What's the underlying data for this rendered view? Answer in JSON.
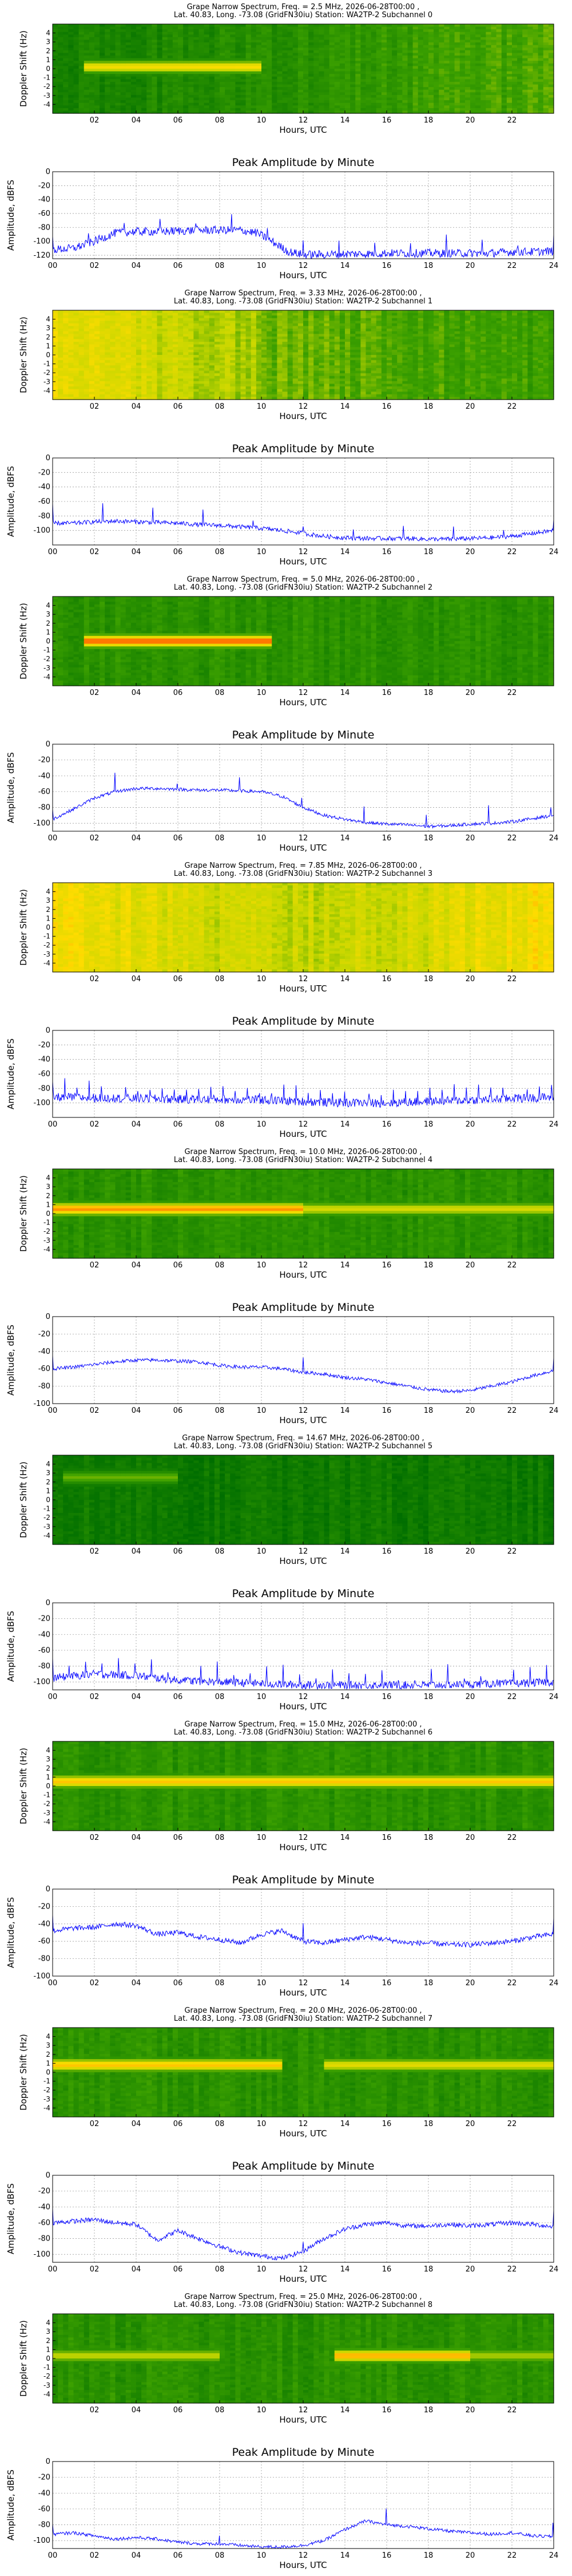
{
  "chart_data": [
    {
      "type": "heatmap",
      "title": "Grape Narrow Spectrum, Freq. = 2.5 MHz, 2026-06-28T00:00 ,",
      "subtitle": "Lat.  40.83, Long. -73.08 (GridFN30iu) Station: WA2TP-2 Subchannel 0",
      "xlabel": "Hours, UTC",
      "ylabel": "Doppler Shift (Hz)",
      "xlim": [
        0,
        24
      ],
      "ylim": [
        -5,
        5
      ],
      "xticks": [
        "02",
        "04",
        "06",
        "08",
        "10",
        "12",
        "14",
        "16",
        "18",
        "20",
        "22"
      ],
      "yticks": [
        "-4",
        "-3",
        "-2",
        "-1",
        "0",
        "1",
        "2",
        "3",
        "4"
      ],
      "bands": [
        {
          "y": 0.2,
          "x": [
            1.5,
            10
          ],
          "strength": 0.7
        }
      ],
      "base": "dark-green-left-light-right"
    },
    {
      "type": "line",
      "title": "Peak Amplitude by Minute",
      "xlabel": "Hours, UTC",
      "ylabel": "Amplitude, dBFS",
      "xlim": [
        0,
        24
      ],
      "ylim": [
        -125,
        0
      ],
      "yticks": [
        0,
        -20,
        -40,
        -60,
        -80,
        -100,
        -120
      ],
      "xticks": [
        "00",
        "02",
        "04",
        "06",
        "08",
        "10",
        "12",
        "14",
        "16",
        "18",
        "20",
        "22",
        "24"
      ],
      "x": [
        0,
        1,
        2,
        3,
        4,
        5,
        6,
        7,
        8,
        9,
        9.8,
        10.5,
        11.3,
        12,
        13,
        14,
        15,
        16,
        17,
        18,
        19,
        20,
        21,
        22,
        23,
        24
      ],
      "y": [
        -112,
        -110,
        -100,
        -88,
        -86,
        -86,
        -85,
        -84,
        -84,
        -84,
        -88,
        -100,
        -115,
        -119,
        -119,
        -118,
        -118,
        -117,
        -117,
        -117,
        -117,
        -117,
        -117,
        -115,
        -115,
        -114
      ],
      "noise": 6,
      "spikes": 14
    },
    {
      "type": "heatmap",
      "title": "Grape Narrow Spectrum, Freq. = 3.33 MHz, 2026-06-28T00:00 ,",
      "subtitle": "Lat.  40.83, Long. -73.08 (GridFN30iu) Station: WA2TP-2 Subchannel 1",
      "xlabel": "Hours, UTC",
      "ylabel": "Doppler Shift (Hz)",
      "xlim": [
        0,
        24
      ],
      "ylim": [
        -5,
        5
      ],
      "xticks": [
        "02",
        "04",
        "06",
        "08",
        "10",
        "12",
        "14",
        "16",
        "18",
        "20",
        "22"
      ],
      "yticks": [
        "-4",
        "-3",
        "-2",
        "-1",
        "0",
        "1",
        "2",
        "3",
        "4"
      ],
      "bands": [],
      "base": "yellow-left-green-right"
    },
    {
      "type": "line",
      "title": "Peak Amplitude by Minute",
      "xlabel": "Hours, UTC",
      "ylabel": "Amplitude, dBFS",
      "xlim": [
        0,
        24
      ],
      "ylim": [
        -120,
        0
      ],
      "yticks": [
        0,
        -20,
        -40,
        -60,
        -80,
        -100
      ],
      "xticks": [
        "00",
        "02",
        "04",
        "06",
        "08",
        "10",
        "12",
        "14",
        "16",
        "18",
        "20",
        "22",
        "24"
      ],
      "x": [
        0,
        1,
        2,
        3,
        4,
        5,
        6,
        7,
        8,
        9,
        10,
        11,
        12,
        13,
        14,
        15,
        16,
        17,
        18,
        19,
        20,
        21,
        22,
        23,
        24
      ],
      "y": [
        -90,
        -90,
        -88,
        -87,
        -88,
        -89,
        -90,
        -92,
        -93,
        -95,
        -97,
        -100,
        -104,
        -108,
        -110,
        -111,
        -111,
        -111,
        -112,
        -112,
        -111,
        -110,
        -108,
        -104,
        -100
      ],
      "noise": 3,
      "spikes": 10
    },
    {
      "type": "heatmap",
      "title": "Grape Narrow Spectrum, Freq. = 5.0 MHz, 2026-06-28T00:00 ,",
      "subtitle": "Lat.  40.83, Long. -73.08 (GridFN30iu) Station: WA2TP-2 Subchannel 2",
      "xlabel": "Hours, UTC",
      "ylabel": "Doppler Shift (Hz)",
      "xlim": [
        0,
        24
      ],
      "ylim": [
        -5,
        5
      ],
      "xticks": [
        "02",
        "04",
        "06",
        "08",
        "10",
        "12",
        "14",
        "16",
        "18",
        "20",
        "22"
      ],
      "yticks": [
        "-4",
        "-3",
        "-2",
        "-1",
        "0",
        "1",
        "2",
        "3",
        "4"
      ],
      "bands": [
        {
          "y": 0,
          "x": [
            1.5,
            10.5
          ],
          "strength": 0.95
        }
      ],
      "base": "green"
    },
    {
      "type": "line",
      "title": "Peak Amplitude by Minute",
      "xlabel": "Hours, UTC",
      "ylabel": "Amplitude, dBFS",
      "xlim": [
        0,
        24
      ],
      "ylim": [
        -110,
        0
      ],
      "yticks": [
        0,
        -20,
        -40,
        -60,
        -80,
        -100
      ],
      "xticks": [
        "00",
        "02",
        "04",
        "06",
        "08",
        "10",
        "12",
        "14",
        "16",
        "18",
        "20",
        "22",
        "24"
      ],
      "x": [
        0,
        1,
        2,
        3,
        4,
        5,
        6,
        7,
        8,
        9,
        10,
        11,
        12,
        13,
        14,
        15,
        16,
        17,
        18,
        19,
        20,
        21,
        22,
        23,
        24
      ],
      "y": [
        -95,
        -82,
        -68,
        -60,
        -56,
        -56,
        -57,
        -58,
        -58,
        -59,
        -60,
        -66,
        -80,
        -90,
        -95,
        -99,
        -101,
        -102,
        -104,
        -103,
        -101,
        -100,
        -98,
        -94,
        -90
      ],
      "noise": 2,
      "spikes": 8
    },
    {
      "type": "heatmap",
      "title": "Grape Narrow Spectrum, Freq. = 7.85 MHz, 2026-06-28T00:00 ,",
      "subtitle": "Lat.  40.83, Long. -73.08 (GridFN30iu) Station: WA2TP-2 Subchannel 3",
      "xlabel": "Hours, UTC",
      "ylabel": "Doppler Shift (Hz)",
      "xlim": [
        0,
        24
      ],
      "ylim": [
        -5,
        5
      ],
      "xticks": [
        "02",
        "04",
        "06",
        "08",
        "10",
        "12",
        "14",
        "16",
        "18",
        "20",
        "22"
      ],
      "yticks": [
        "-4",
        "-3",
        "-2",
        "-1",
        "0",
        "1",
        "2",
        "3",
        "4"
      ],
      "bands": [],
      "base": "orange-yellow"
    },
    {
      "type": "line",
      "title": "Peak Amplitude by Minute",
      "xlabel": "Hours, UTC",
      "ylabel": "Amplitude, dBFS",
      "xlim": [
        0,
        24
      ],
      "ylim": [
        -120,
        0
      ],
      "yticks": [
        0,
        -20,
        -40,
        -60,
        -80,
        -100
      ],
      "xticks": [
        "00",
        "02",
        "04",
        "06",
        "08",
        "10",
        "12",
        "14",
        "16",
        "18",
        "20",
        "22",
        "24"
      ],
      "x": [
        0,
        2,
        4,
        6,
        8,
        10,
        12,
        14,
        16,
        18,
        20,
        22,
        24
      ],
      "y": [
        -92,
        -93,
        -94,
        -95,
        -95,
        -96,
        -98,
        -100,
        -100,
        -98,
        -96,
        -94,
        -92
      ],
      "noise": 6,
      "spikes": 40
    },
    {
      "type": "heatmap",
      "title": "Grape Narrow Spectrum, Freq. = 10.0 MHz, 2026-06-28T00:00 ,",
      "subtitle": "Lat.  40.83, Long. -73.08 (GridFN30iu) Station: WA2TP-2 Subchannel 4",
      "xlabel": "Hours, UTC",
      "ylabel": "Doppler Shift (Hz)",
      "xlim": [
        0,
        24
      ],
      "ylim": [
        -5,
        5
      ],
      "xticks": [
        "02",
        "04",
        "06",
        "08",
        "10",
        "12",
        "14",
        "16",
        "18",
        "20",
        "22"
      ],
      "yticks": [
        "-4",
        "-3",
        "-2",
        "-1",
        "0",
        "1",
        "2",
        "3",
        "4"
      ],
      "bands": [
        {
          "y": 0.5,
          "x": [
            0,
            12
          ],
          "strength": 0.85
        },
        {
          "y": 0.5,
          "x": [
            12,
            24
          ],
          "strength": 0.55
        }
      ],
      "base": "green"
    },
    {
      "type": "line",
      "title": "Peak Amplitude by Minute",
      "xlabel": "Hours, UTC",
      "ylabel": "Amplitude, dBFS",
      "xlim": [
        0,
        24
      ],
      "ylim": [
        -100,
        0
      ],
      "yticks": [
        0,
        -20,
        -40,
        -60,
        -80,
        -100
      ],
      "xticks": [
        "00",
        "02",
        "04",
        "06",
        "08",
        "10",
        "12",
        "14",
        "16",
        "18",
        "20",
        "22",
        "24"
      ],
      "x": [
        0,
        1,
        2,
        3,
        4,
        5,
        6,
        7,
        8,
        9,
        10,
        11,
        12,
        13,
        14,
        15,
        16,
        17,
        18,
        19,
        20,
        21,
        22,
        23,
        24
      ],
      "y": [
        -60,
        -58,
        -55,
        -52,
        -50,
        -50,
        -51,
        -52,
        -56,
        -58,
        -58,
        -60,
        -64,
        -66,
        -70,
        -72,
        -76,
        -80,
        -84,
        -86,
        -85,
        -80,
        -75,
        -68,
        -62
      ],
      "noise": 2,
      "spikes": 2
    },
    {
      "type": "heatmap",
      "title": "Grape Narrow Spectrum, Freq. = 14.67 MHz, 2026-06-28T00:00 ,",
      "subtitle": "Lat.  40.83, Long. -73.08 (GridFN30iu) Station: WA2TP-2 Subchannel 5",
      "xlabel": "Hours, UTC",
      "ylabel": "Doppler Shift (Hz)",
      "xlim": [
        0,
        24
      ],
      "ylim": [
        -5,
        5
      ],
      "xticks": [
        "02",
        "04",
        "06",
        "08",
        "10",
        "12",
        "14",
        "16",
        "18",
        "20",
        "22"
      ],
      "yticks": [
        "-4",
        "-3",
        "-2",
        "-1",
        "0",
        "1",
        "2",
        "3",
        "4"
      ],
      "bands": [
        {
          "y": 2.5,
          "x": [
            0.5,
            6
          ],
          "strength": 0.4
        }
      ],
      "base": "dark-green"
    },
    {
      "type": "line",
      "title": "Peak Amplitude by Minute",
      "xlabel": "Hours, UTC",
      "ylabel": "Amplitude, dBFS",
      "xlim": [
        0,
        24
      ],
      "ylim": [
        -110,
        0
      ],
      "yticks": [
        0,
        -20,
        -40,
        -60,
        -80,
        -100
      ],
      "xticks": [
        "00",
        "02",
        "04",
        "06",
        "08",
        "10",
        "12",
        "14",
        "16",
        "18",
        "20",
        "22",
        "24"
      ],
      "x": [
        0,
        2,
        4,
        6,
        8,
        10,
        12,
        14,
        16,
        18,
        20,
        22,
        24
      ],
      "y": [
        -95,
        -90,
        -92,
        -98,
        -100,
        -102,
        -104,
        -104,
        -104,
        -104,
        -103,
        -102,
        -100
      ],
      "noise": 5,
      "spikes": 30
    },
    {
      "type": "heatmap",
      "title": "Grape Narrow Spectrum, Freq. = 15.0 MHz, 2026-06-28T00:00 ,",
      "subtitle": "Lat.  40.83, Long. -73.08 (GridFN30iu) Station: WA2TP-2 Subchannel 6",
      "xlabel": "Hours, UTC",
      "ylabel": "Doppler Shift (Hz)",
      "xlim": [
        0,
        24
      ],
      "ylim": [
        -5,
        5
      ],
      "xticks": [
        "02",
        "04",
        "06",
        "08",
        "10",
        "12",
        "14",
        "16",
        "18",
        "20",
        "22"
      ],
      "yticks": [
        "-4",
        "-3",
        "-2",
        "-1",
        "0",
        "1",
        "2",
        "3",
        "4"
      ],
      "bands": [
        {
          "y": 0.5,
          "x": [
            0,
            24
          ],
          "strength": 0.75
        }
      ],
      "base": "green"
    },
    {
      "type": "line",
      "title": "Peak Amplitude by Minute",
      "xlabel": "Hours, UTC",
      "ylabel": "Amplitude, dBFS",
      "xlim": [
        0,
        24
      ],
      "ylim": [
        -100,
        0
      ],
      "yticks": [
        0,
        -20,
        -40,
        -60,
        -80,
        -100
      ],
      "xticks": [
        "00",
        "02",
        "04",
        "06",
        "08",
        "10",
        "12",
        "14",
        "16",
        "18",
        "20",
        "22",
        "24"
      ],
      "x": [
        0,
        1,
        2,
        3,
        4,
        5,
        6,
        7,
        8,
        9,
        10,
        11,
        12,
        13,
        14,
        15,
        16,
        17,
        18,
        19,
        20,
        21,
        22,
        23,
        24
      ],
      "y": [
        -48,
        -45,
        -44,
        -40,
        -42,
        -52,
        -50,
        -55,
        -58,
        -62,
        -52,
        -48,
        -60,
        -62,
        -58,
        -55,
        -58,
        -62,
        -62,
        -64,
        -64,
        -62,
        -60,
        -55,
        -52
      ],
      "noise": 3,
      "spikes": 2
    },
    {
      "type": "heatmap",
      "title": "Grape Narrow Spectrum, Freq. = 20.0 MHz, 2026-06-28T00:00 ,",
      "subtitle": "Lat.  40.83, Long. -73.08 (GridFN30iu) Station: WA2TP-2 Subchannel 7",
      "xlabel": "Hours, UTC",
      "ylabel": "Doppler Shift (Hz)",
      "xlim": [
        0,
        24
      ],
      "ylim": [
        -5,
        5
      ],
      "xticks": [
        "02",
        "04",
        "06",
        "08",
        "10",
        "12",
        "14",
        "16",
        "18",
        "20",
        "22"
      ],
      "yticks": [
        "-4",
        "-3",
        "-2",
        "-1",
        "0",
        "1",
        "2",
        "3",
        "4"
      ],
      "bands": [
        {
          "y": 0.8,
          "x": [
            0,
            11
          ],
          "strength": 0.75
        },
        {
          "y": 0.8,
          "x": [
            13,
            24
          ],
          "strength": 0.6
        }
      ],
      "base": "green"
    },
    {
      "type": "line",
      "title": "Peak Amplitude by Minute",
      "xlabel": "Hours, UTC",
      "ylabel": "Amplitude, dBFS",
      "xlim": [
        0,
        24
      ],
      "ylim": [
        -110,
        0
      ],
      "yticks": [
        0,
        -20,
        -40,
        -60,
        -80,
        -100
      ],
      "xticks": [
        "00",
        "02",
        "04",
        "06",
        "08",
        "10",
        "12",
        "14",
        "16",
        "18",
        "20",
        "22",
        "24"
      ],
      "x": [
        0,
        1,
        2,
        3,
        4,
        5,
        6,
        7,
        8,
        9,
        10,
        11,
        12,
        13,
        14,
        15,
        16,
        17,
        18,
        19,
        20,
        21,
        22,
        23,
        24
      ],
      "y": [
        -60,
        -58,
        -56,
        -60,
        -62,
        -82,
        -70,
        -80,
        -90,
        -98,
        -102,
        -105,
        -96,
        -80,
        -68,
        -62,
        -60,
        -64,
        -64,
        -62,
        -64,
        -62,
        -60,
        -62,
        -65
      ],
      "noise": 3,
      "spikes": 2
    },
    {
      "type": "heatmap",
      "title": "Grape Narrow Spectrum, Freq. = 25.0 MHz, 2026-06-28T00:00 ,",
      "subtitle": "Lat.  40.83, Long. -73.08 (GridFN30iu) Station: WA2TP-2 Subchannel 8",
      "xlabel": "Hours, UTC",
      "ylabel": "Doppler Shift (Hz)",
      "xlim": [
        0,
        24
      ],
      "ylim": [
        -5,
        5
      ],
      "xticks": [
        "02",
        "04",
        "06",
        "08",
        "10",
        "12",
        "14",
        "16",
        "18",
        "20",
        "22"
      ],
      "yticks": [
        "-4",
        "-3",
        "-2",
        "-1",
        "0",
        "1",
        "2",
        "3",
        "4"
      ],
      "bands": [
        {
          "y": 0.3,
          "x": [
            0,
            8
          ],
          "strength": 0.5
        },
        {
          "y": 0.3,
          "x": [
            13.5,
            20
          ],
          "strength": 0.8
        },
        {
          "y": 0.3,
          "x": [
            20,
            24
          ],
          "strength": 0.45
        }
      ],
      "base": "green"
    },
    {
      "type": "line",
      "title": "Peak Amplitude by Minute",
      "xlabel": "Hours, UTC",
      "ylabel": "Amplitude, dBFS",
      "xlim": [
        0,
        24
      ],
      "ylim": [
        -110,
        0
      ],
      "yticks": [
        0,
        -20,
        -40,
        -60,
        -80,
        -100
      ],
      "xticks": [
        "00",
        "02",
        "04",
        "06",
        "08",
        "10",
        "12",
        "14",
        "16",
        "18",
        "20",
        "22",
        "24"
      ],
      "x": [
        0,
        1,
        2,
        3,
        4,
        5,
        6,
        7,
        8,
        9,
        10,
        11,
        12,
        13,
        14,
        15,
        16,
        17,
        18,
        19,
        20,
        21,
        22,
        23,
        24
      ],
      "y": [
        -92,
        -90,
        -94,
        -98,
        -96,
        -98,
        -102,
        -104,
        -104,
        -106,
        -108,
        -108,
        -106,
        -100,
        -86,
        -75,
        -80,
        -82,
        -85,
        -88,
        -90,
        -92,
        -90,
        -94,
        -95
      ],
      "noise": 2,
      "spikes": 3
    }
  ]
}
